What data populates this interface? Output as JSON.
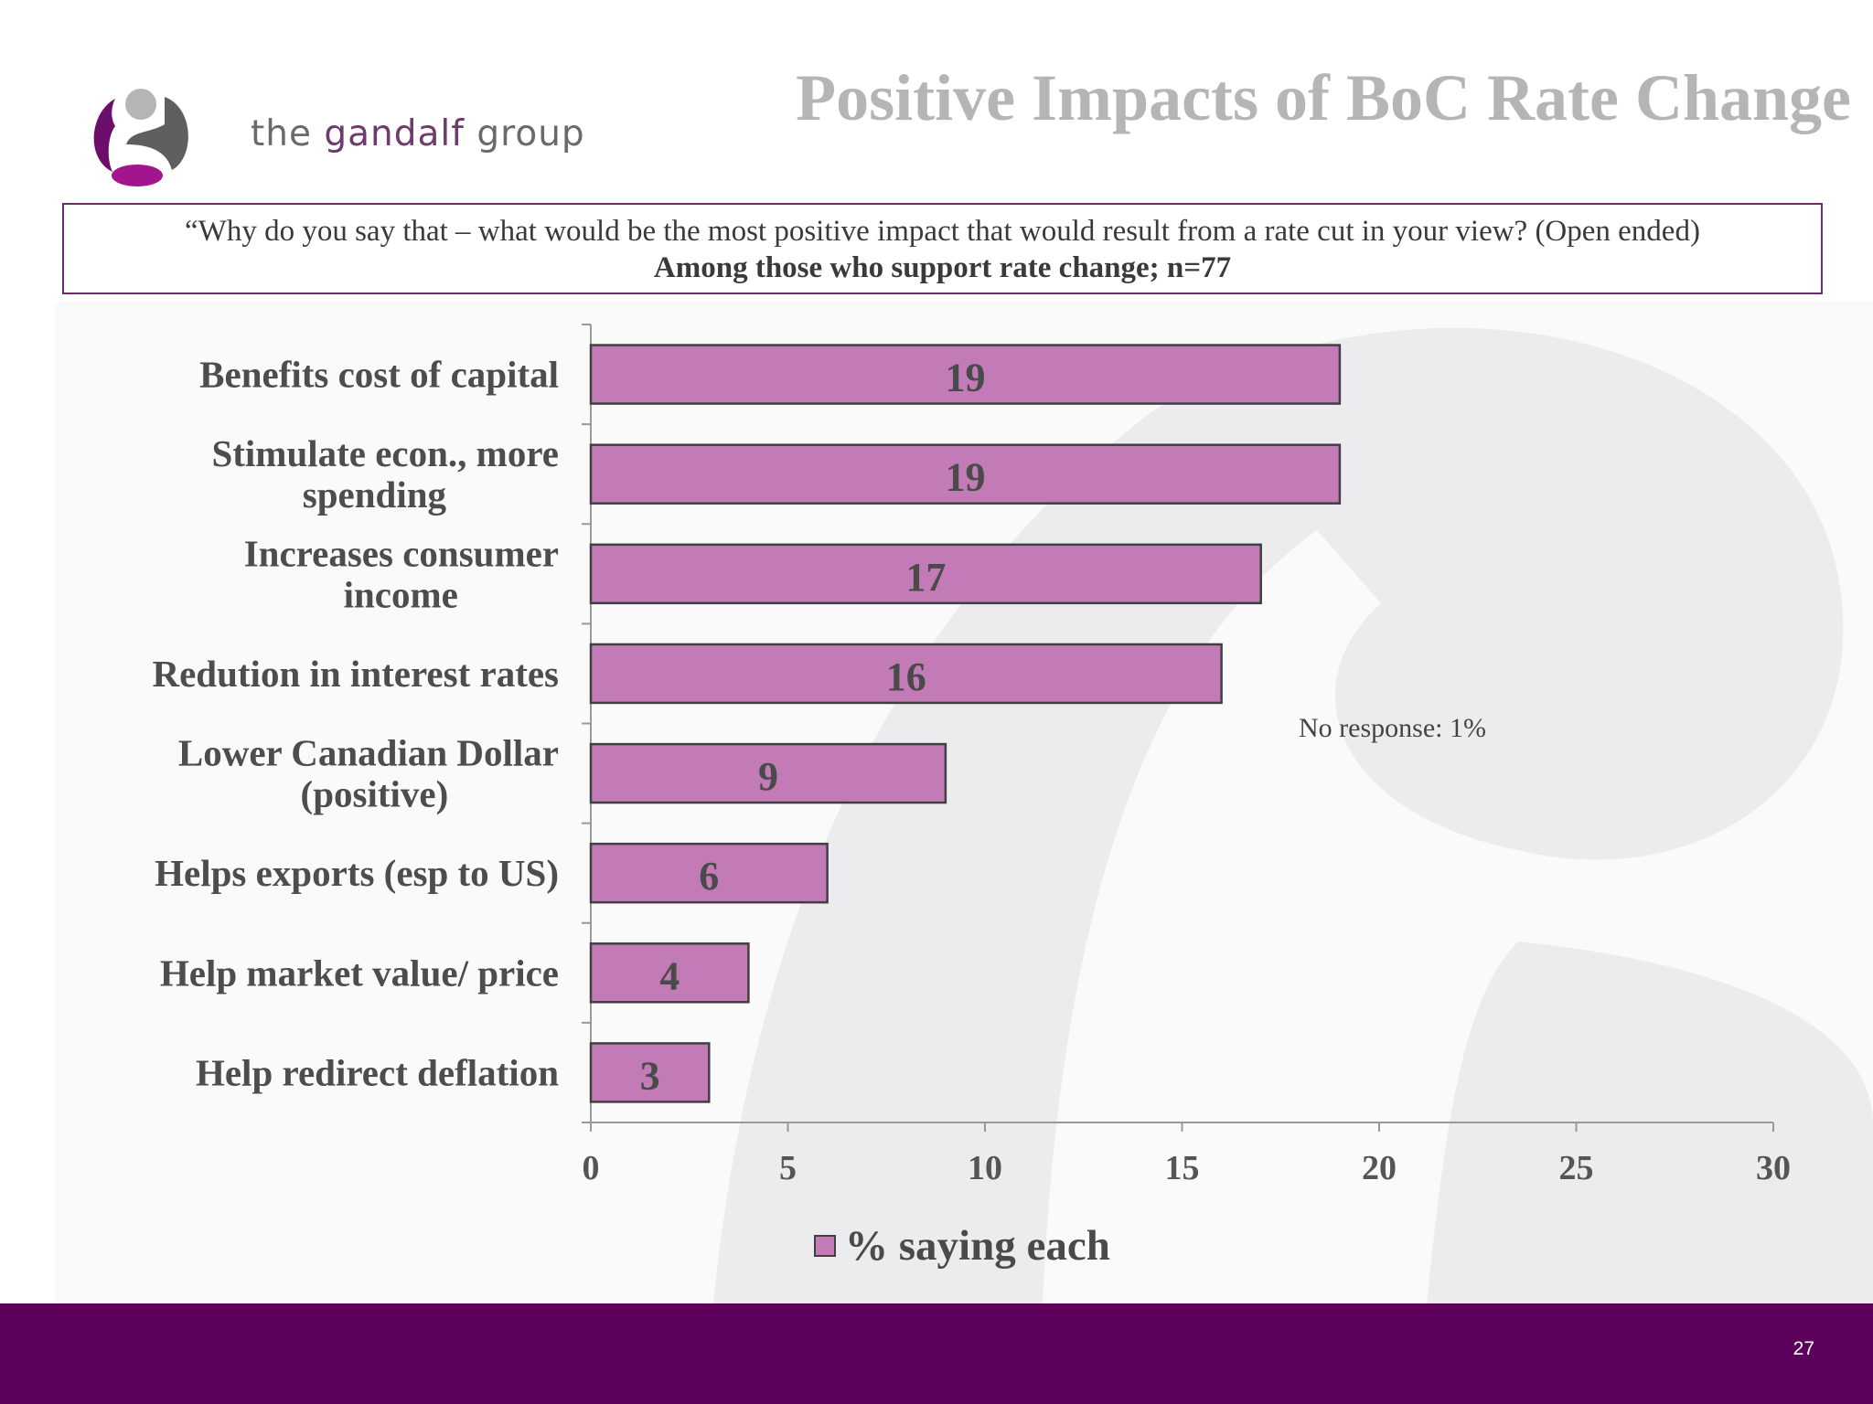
{
  "header": {
    "logo_text": {
      "pre": "the ",
      "mid": "gandalf",
      "post": " group"
    },
    "title": "Positive Impacts of BoC Rate Change"
  },
  "question": {
    "line1": "“Why do you say that – what would be the most positive impact that would result from a rate cut in your view? (Open ended)",
    "line2": "Among those who support rate change; n=77"
  },
  "chart_data": {
    "type": "bar",
    "orientation": "horizontal",
    "categories": [
      [
        "Benefits cost of capital"
      ],
      [
        "Stimulate econ., more",
        "spending"
      ],
      [
        "Increases consumer",
        "income"
      ],
      [
        "Redution in interest rates"
      ],
      [
        "Lower Canadian Dollar",
        "(positive)"
      ],
      [
        "Helps exports (esp to US)"
      ],
      [
        "Help market value/ price"
      ],
      [
        "Help redirect deflation"
      ]
    ],
    "series": [
      {
        "name": "% saying each",
        "values": [
          19,
          19,
          17,
          16,
          9,
          6,
          4,
          3
        ],
        "color": "#c27bb7"
      }
    ],
    "xlim": [
      0,
      30
    ],
    "xticks": [
      0,
      5,
      10,
      15,
      20,
      25,
      30
    ],
    "grid": false,
    "legend": "bottom",
    "annotation": "No response: 1%"
  },
  "colors": {
    "footer": "#5c005c",
    "box_border": "#6b2c6b",
    "title": "#b5b5b5"
  },
  "footer": {
    "page_number": "27"
  }
}
